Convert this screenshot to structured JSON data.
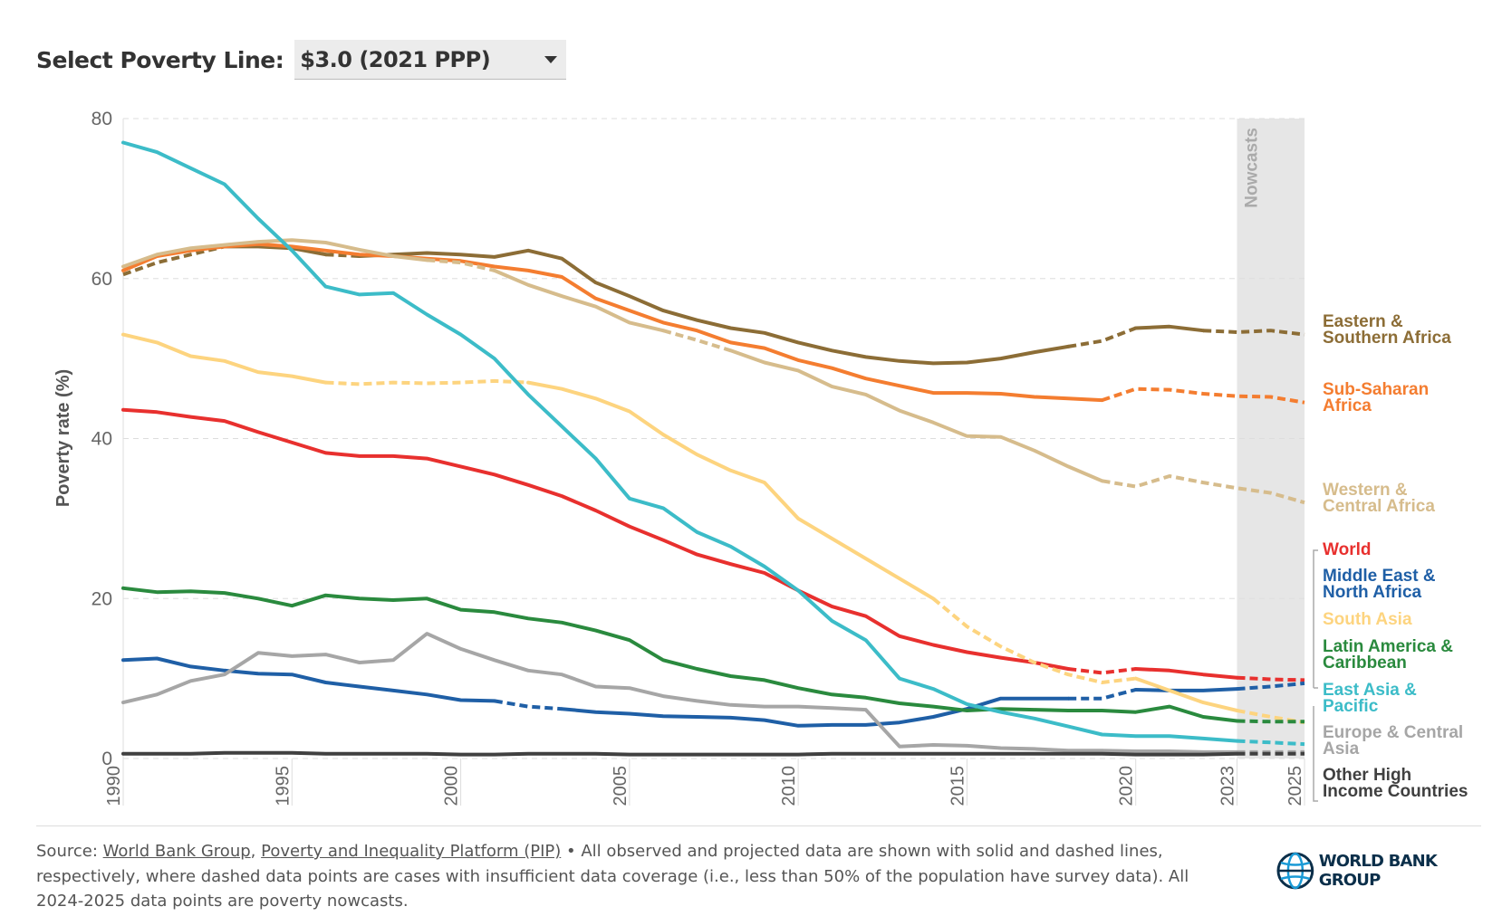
{
  "header": {
    "label": "Select Poverty Line:",
    "selected": "$3.0 (2021 PPP)"
  },
  "chart_data": {
    "type": "line",
    "ylabel": "Poverty rate (%)",
    "ylim": [
      0,
      80
    ],
    "yticks": [
      0,
      20,
      40,
      60,
      80
    ],
    "xlim": [
      1990,
      2025
    ],
    "xticks": [
      1990,
      1995,
      2000,
      2005,
      2010,
      2015,
      2020,
      2023,
      2025
    ],
    "grid": "horizontal dashed",
    "nowcast_band": {
      "label": "Nowcasts",
      "from": 2023,
      "to": 2025,
      "color": "#e6e6e6"
    },
    "legend": "right, direct labels",
    "x": [
      1990,
      1991,
      1992,
      1993,
      1994,
      1995,
      1996,
      1997,
      1998,
      1999,
      2000,
      2001,
      2002,
      2003,
      2004,
      2005,
      2006,
      2007,
      2008,
      2009,
      2010,
      2011,
      2012,
      2013,
      2014,
      2015,
      2016,
      2017,
      2018,
      2019,
      2020,
      2021,
      2022,
      2023,
      2024,
      2025
    ],
    "series": [
      {
        "name": "Eastern & Southern Africa",
        "label_lines": [
          "Eastern &",
          "Southern Africa"
        ],
        "color": "#8c6d36",
        "values": [
          60.5,
          62,
          63,
          64,
          64,
          63.8,
          63,
          62.8,
          63,
          63.2,
          63,
          62.7,
          63.5,
          62.5,
          59.5,
          57.8,
          56,
          54.8,
          53.8,
          53.2,
          52,
          51,
          50.2,
          49.7,
          49.4,
          49.5,
          50,
          50.8,
          51.5,
          52.2,
          53.8,
          54,
          53.5,
          53.3,
          53.5,
          53
        ],
        "dashed": [
          [
            1990,
            1993
          ],
          [
            1996,
            1997
          ],
          [
            2018,
            2020
          ],
          [
            2022,
            2025
          ]
        ]
      },
      {
        "name": "Sub-Saharan Africa",
        "label_lines": [
          "Sub-Saharan",
          "Africa"
        ],
        "color": "#f47d30",
        "values": [
          61,
          62.8,
          63.5,
          64,
          64.3,
          64,
          63.5,
          63,
          62.8,
          62.5,
          62.2,
          61.5,
          61,
          60.2,
          57.5,
          56,
          54.5,
          53.5,
          52,
          51.3,
          49.8,
          48.8,
          47.5,
          46.6,
          45.7,
          45.7,
          45.6,
          45.2,
          45,
          44.8,
          46.2,
          46.1,
          45.6,
          45.3,
          45.2,
          44.5
        ],
        "dashed": [
          [
            2019,
            2025
          ]
        ]
      },
      {
        "name": "Western & Central Africa",
        "label_lines": [
          "Western &",
          "Central Africa"
        ],
        "color": "#d6bc8c",
        "values": [
          61.5,
          63,
          63.8,
          64.2,
          64.6,
          64.8,
          64.5,
          63.6,
          62.8,
          62.3,
          62,
          61,
          59.2,
          57.8,
          56.5,
          54.5,
          53.5,
          52.3,
          51,
          49.5,
          48.5,
          46.5,
          45.5,
          43.5,
          42,
          40.3,
          40.2,
          38.5,
          36.5,
          34.7,
          34,
          35.3,
          34.5,
          33.8,
          33.2,
          32
        ],
        "dashed": [
          [
            1999,
            2001
          ],
          [
            2006,
            2008
          ],
          [
            2019,
            2025
          ]
        ]
      },
      {
        "name": "World",
        "label_lines": [
          "World"
        ],
        "color": "#e8302e",
        "values": [
          43.6,
          43.3,
          42.7,
          42.2,
          40.8,
          39.5,
          38.2,
          37.8,
          37.8,
          37.5,
          36.5,
          35.5,
          34.2,
          32.8,
          31,
          29,
          27.3,
          25.5,
          24.3,
          23.2,
          21,
          19,
          17.8,
          15.3,
          14.2,
          13.3,
          12.6,
          12,
          11.2,
          10.7,
          11.2,
          11,
          10.5,
          10.1,
          9.9,
          9.8
        ],
        "dashed": [
          [
            2018,
            2020
          ],
          [
            2023,
            2025
          ]
        ]
      },
      {
        "name": "Middle East & North Africa",
        "label_lines": [
          "Middle East &",
          "North Africa"
        ],
        "color": "#1f5fa6",
        "values": [
          12.3,
          12.5,
          11.5,
          11,
          10.6,
          10.5,
          9.5,
          9,
          8.5,
          8,
          7.3,
          7.2,
          6.5,
          6.2,
          5.8,
          5.6,
          5.3,
          5.2,
          5.1,
          4.8,
          4.1,
          4.2,
          4.2,
          4.5,
          5.2,
          6.2,
          7.5,
          7.5,
          7.5,
          7.5,
          8.6,
          8.5,
          8.5,
          8.7,
          9,
          9.4
        ],
        "dashed": [
          [
            2001,
            2003
          ],
          [
            2018,
            2020
          ],
          [
            2023,
            2025
          ]
        ]
      },
      {
        "name": "South Asia",
        "label_lines": [
          "South Asia"
        ],
        "color": "#fdd47f",
        "values": [
          53,
          52,
          50.3,
          49.7,
          48.3,
          47.8,
          47,
          46.8,
          47,
          46.9,
          47,
          47.2,
          47,
          46.2,
          45,
          43.4,
          40.5,
          38,
          36,
          34.5,
          30,
          27.5,
          25,
          22.5,
          20,
          16.5,
          14,
          12,
          10.5,
          9.5,
          10,
          8.5,
          7,
          6,
          5.2,
          4.5
        ],
        "dashed": [
          [
            1996,
            2002
          ],
          [
            2014,
            2020
          ],
          [
            2023,
            2025
          ]
        ]
      },
      {
        "name": "Latin America & Caribbean",
        "label_lines": [
          "Latin America &",
          "Caribbean"
        ],
        "color": "#2a8a3e",
        "values": [
          21.3,
          20.8,
          20.9,
          20.7,
          20,
          19.1,
          20.4,
          20,
          19.8,
          20,
          18.6,
          18.3,
          17.5,
          17,
          16,
          14.8,
          12.3,
          11.2,
          10.3,
          9.8,
          8.8,
          8,
          7.6,
          6.9,
          6.5,
          6,
          6.2,
          6.1,
          6,
          6,
          5.8,
          6.5,
          5.2,
          4.7,
          4.6,
          4.6
        ],
        "dashed": [
          [
            2023,
            2025
          ]
        ]
      },
      {
        "name": "East Asia & Pacific",
        "label_lines": [
          "East Asia &",
          "Pacific"
        ],
        "color": "#3cbcc8",
        "values": [
          77,
          75.8,
          73.8,
          71.8,
          67.5,
          63.5,
          59,
          58,
          58.2,
          55.5,
          53,
          50,
          45.5,
          41.5,
          37.5,
          32.5,
          31.3,
          28.3,
          26.5,
          24,
          21,
          17.2,
          14.8,
          10,
          8.7,
          6.8,
          5.8,
          5,
          4,
          3,
          2.8,
          2.8,
          2.5,
          2.2,
          2,
          1.8
        ],
        "dashed": [
          [
            2023,
            2025
          ]
        ]
      },
      {
        "name": "Europe & Central Asia",
        "label_lines": [
          "Europe & Central",
          "Asia"
        ],
        "color": "#a6a6a6",
        "values": [
          7,
          8,
          9.7,
          10.5,
          13.2,
          12.8,
          13,
          12,
          12.3,
          15.6,
          13.7,
          12.3,
          11,
          10.5,
          9,
          8.8,
          7.8,
          7.2,
          6.7,
          6.5,
          6.5,
          6.3,
          6.1,
          1.5,
          1.7,
          1.6,
          1.3,
          1.2,
          1,
          1,
          0.9,
          0.9,
          0.8,
          0.8,
          0.8,
          0.8
        ],
        "dashed": [
          [
            2023,
            2025
          ]
        ]
      },
      {
        "name": "Other High Income Countries",
        "label_lines": [
          "Other High",
          "Income Countries"
        ],
        "color": "#404040",
        "values": [
          0.6,
          0.6,
          0.6,
          0.7,
          0.7,
          0.7,
          0.6,
          0.6,
          0.6,
          0.6,
          0.5,
          0.5,
          0.6,
          0.6,
          0.6,
          0.5,
          0.5,
          0.5,
          0.5,
          0.5,
          0.5,
          0.6,
          0.6,
          0.6,
          0.6,
          0.6,
          0.6,
          0.6,
          0.6,
          0.6,
          0.5,
          0.5,
          0.5,
          0.6,
          0.6,
          0.6
        ],
        "dashed": [
          [
            2023,
            2025
          ]
        ]
      }
    ]
  },
  "footer": {
    "prefix": "Source: ",
    "link1": "World Bank Group",
    "sep": ", ",
    "link2": "Poverty and Inequality Platform (PIP)",
    "text": " • All observed and projected data are shown with solid and dashed lines, respectively, where dashed data points are cases with insufficient data coverage (i.e., less than 50% of the population have survey data). All 2024-2025 data points are poverty nowcasts."
  },
  "logo": {
    "text": "WORLD BANK GROUP"
  }
}
